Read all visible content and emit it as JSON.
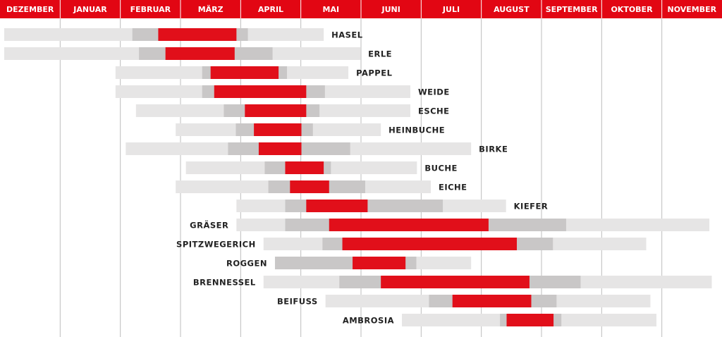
{
  "chart_data": {
    "type": "gantt",
    "title": "",
    "months": [
      "DEZEMBER",
      "JANUAR",
      "FEBRUAR",
      "MÄRZ",
      "APRIL",
      "MAI",
      "JUNI",
      "JULI",
      "AUGUST",
      "SEPTEMBER",
      "OKTOBER",
      "NOVEMBER"
    ],
    "x_unit": "month index (0 = start of DEZEMBER, 12 = end of NOVEMBER)",
    "colors": {
      "header": "#e20613",
      "main": "#e10f1a",
      "medium": "#c9c7c7",
      "light": "#e6e5e5",
      "grid": "#bdbdbd",
      "label": "#222222"
    },
    "plants": [
      {
        "name": "HASEL",
        "label_side": "right",
        "light": [
          0.07,
          5.38
        ],
        "medium": [
          2.2,
          4.12
        ],
        "main": [
          2.63,
          3.93
        ]
      },
      {
        "name": "ERLE",
        "label_side": "right",
        "light": [
          0.07,
          5.99
        ],
        "medium": [
          2.31,
          4.53
        ],
        "main": [
          2.75,
          3.9
        ]
      },
      {
        "name": "PAPPEL",
        "label_side": "right",
        "light": [
          1.92,
          5.79
        ],
        "medium": [
          3.36,
          4.77
        ],
        "main": [
          3.5,
          4.63
        ]
      },
      {
        "name": "WEIDE",
        "label_side": "right",
        "light": [
          1.92,
          6.82
        ],
        "medium": [
          3.36,
          5.4
        ],
        "main": [
          3.56,
          5.09
        ]
      },
      {
        "name": "ESCHE",
        "label_side": "right",
        "light": [
          2.26,
          6.82
        ],
        "medium": [
          3.72,
          5.31
        ],
        "main": [
          4.07,
          5.09
        ]
      },
      {
        "name": "HEINBUCHE",
        "label_side": "right",
        "light": [
          2.92,
          6.33
        ],
        "medium": [
          3.92,
          5.2
        ],
        "main": [
          4.22,
          5.01
        ]
      },
      {
        "name": "BIRKE",
        "label_side": "right",
        "light": [
          2.09,
          7.83
        ],
        "medium": [
          3.79,
          5.82
        ],
        "main": [
          4.3,
          5.01
        ]
      },
      {
        "name": "BUCHE",
        "label_side": "right",
        "light": [
          3.09,
          6.93
        ],
        "medium": [
          4.4,
          5.5
        ],
        "main": [
          4.74,
          5.38
        ]
      },
      {
        "name": "EICHE",
        "label_side": "right",
        "light": [
          2.92,
          7.16
        ],
        "medium": [
          4.46,
          6.07
        ],
        "main": [
          4.82,
          5.47
        ]
      },
      {
        "name": "KIEFER",
        "label_side": "right",
        "light": [
          3.93,
          8.41
        ],
        "medium": [
          4.74,
          7.36
        ],
        "main": [
          5.09,
          6.11
        ]
      },
      {
        "name": "GRÄSER",
        "label_side": "left",
        "light": [
          3.93,
          11.79
        ],
        "medium": [
          4.74,
          9.41
        ],
        "main": [
          5.47,
          8.12
        ]
      },
      {
        "name": "SPITZWEGERICH",
        "label_side": "left",
        "light": [
          4.38,
          10.74
        ],
        "medium": [
          5.36,
          9.19
        ],
        "main": [
          5.69,
          8.59
        ]
      },
      {
        "name": "ROGGEN",
        "label_side": "left",
        "light": [
          4.57,
          7.83
        ],
        "medium": [
          4.57,
          6.92
        ],
        "main": [
          5.86,
          6.74
        ]
      },
      {
        "name": "BRENNESSEL",
        "label_side": "left",
        "light": [
          4.38,
          11.83
        ],
        "medium": [
          5.64,
          9.65
        ],
        "main": [
          6.33,
          8.8
        ]
      },
      {
        "name": "BEIFUSS",
        "label_side": "left",
        "light": [
          5.41,
          10.81
        ],
        "medium": [
          7.13,
          9.25
        ],
        "main": [
          7.52,
          8.83
        ]
      },
      {
        "name": "AMBROSIA",
        "label_side": "left",
        "light": [
          6.68,
          10.91
        ],
        "medium": [
          8.31,
          9.33
        ],
        "main": [
          8.42,
          9.2
        ]
      }
    ]
  }
}
